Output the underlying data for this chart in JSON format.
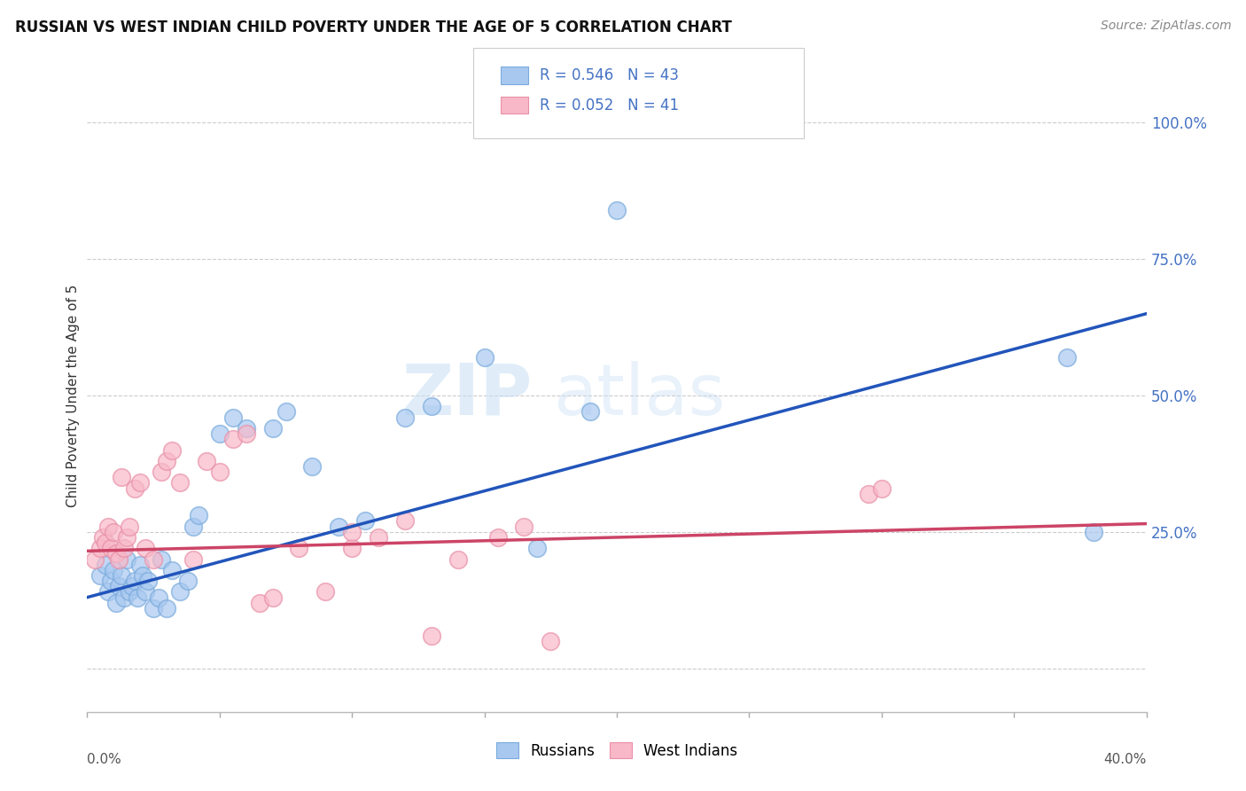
{
  "title": "RUSSIAN VS WEST INDIAN CHILD POVERTY UNDER THE AGE OF 5 CORRELATION CHART",
  "source": "Source: ZipAtlas.com",
  "ylabel": "Child Poverty Under the Age of 5",
  "xlim": [
    0.0,
    0.4
  ],
  "ylim": [
    -0.08,
    1.08
  ],
  "yticks": [
    0.0,
    0.25,
    0.5,
    0.75,
    1.0
  ],
  "ytick_labels": [
    "",
    "25.0%",
    "50.0%",
    "75.0%",
    "100.0%"
  ],
  "russian_color_fill": "#a8c8f0",
  "russian_color_edge": "#7aabdc",
  "westindian_color_fill": "#f8b8c8",
  "westindian_color_edge": "#e890a8",
  "russian_line_color": "#2255bb",
  "westindian_line_color": "#cc4466",
  "watermark_zip": "ZIP",
  "watermark_atlas": "atlas",
  "russian_x": [
    0.005,
    0.007,
    0.008,
    0.009,
    0.01,
    0.011,
    0.012,
    0.013,
    0.014,
    0.015,
    0.016,
    0.017,
    0.018,
    0.019,
    0.02,
    0.021,
    0.022,
    0.023,
    0.025,
    0.027,
    0.028,
    0.03,
    0.032,
    0.035,
    0.038,
    0.04,
    0.042,
    0.05,
    0.055,
    0.06,
    0.07,
    0.075,
    0.085,
    0.095,
    0.105,
    0.12,
    0.13,
    0.15,
    0.17,
    0.19,
    0.2,
    0.37,
    0.38
  ],
  "russian_y": [
    0.17,
    0.19,
    0.14,
    0.16,
    0.18,
    0.12,
    0.15,
    0.17,
    0.13,
    0.2,
    0.14,
    0.15,
    0.16,
    0.13,
    0.19,
    0.17,
    0.14,
    0.16,
    0.11,
    0.13,
    0.2,
    0.11,
    0.18,
    0.14,
    0.16,
    0.26,
    0.28,
    0.43,
    0.46,
    0.44,
    0.44,
    0.47,
    0.37,
    0.26,
    0.27,
    0.46,
    0.48,
    0.57,
    0.22,
    0.47,
    0.84,
    0.57,
    0.25
  ],
  "westindian_x": [
    0.003,
    0.005,
    0.006,
    0.007,
    0.008,
    0.009,
    0.01,
    0.011,
    0.012,
    0.013,
    0.014,
    0.015,
    0.016,
    0.018,
    0.02,
    0.022,
    0.025,
    0.028,
    0.03,
    0.032,
    0.035,
    0.04,
    0.045,
    0.055,
    0.06,
    0.065,
    0.07,
    0.08,
    0.09,
    0.1,
    0.11,
    0.12,
    0.13,
    0.14,
    0.155,
    0.165,
    0.175,
    0.05,
    0.1,
    0.295,
    0.3
  ],
  "westindian_y": [
    0.2,
    0.22,
    0.24,
    0.23,
    0.26,
    0.22,
    0.25,
    0.21,
    0.2,
    0.35,
    0.22,
    0.24,
    0.26,
    0.33,
    0.34,
    0.22,
    0.2,
    0.36,
    0.38,
    0.4,
    0.34,
    0.2,
    0.38,
    0.42,
    0.43,
    0.12,
    0.13,
    0.22,
    0.14,
    0.22,
    0.24,
    0.27,
    0.06,
    0.2,
    0.24,
    0.26,
    0.05,
    0.36,
    0.25,
    0.32,
    0.33
  ]
}
